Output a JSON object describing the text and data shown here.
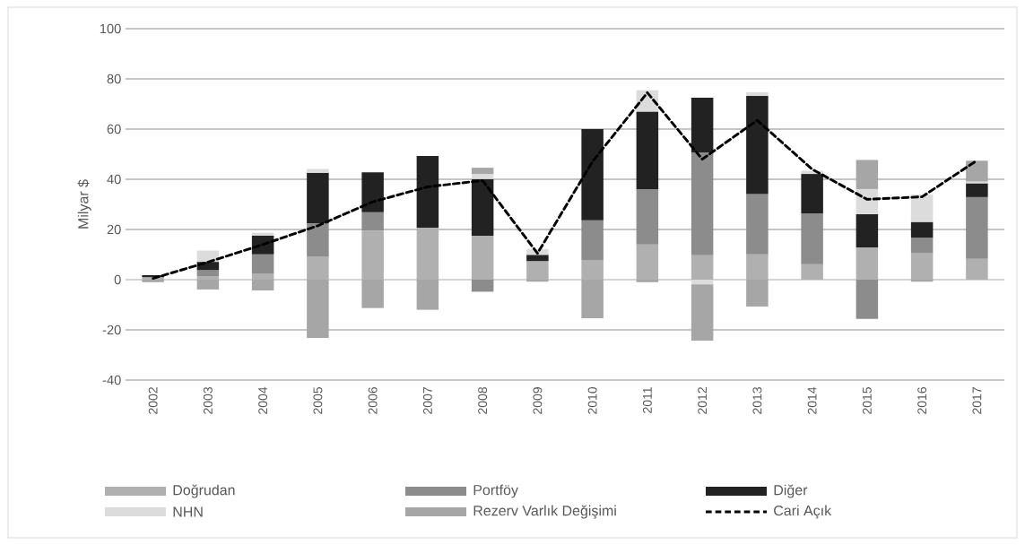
{
  "chart_data": {
    "type": "bar",
    "stacked": true,
    "ylabel": "Milyar $",
    "categories": [
      "2002",
      "2003",
      "2004",
      "2005",
      "2006",
      "2007",
      "2008",
      "2009",
      "2010",
      "2011",
      "2012",
      "2013",
      "2014",
      "2015",
      "2016",
      "2017"
    ],
    "series": [
      {
        "name": "Doğrudan",
        "color": "#b0b0b0",
        "values": [
          1.0,
          1.4,
          2.3,
          9.1,
          19.5,
          20.7,
          17.5,
          7.4,
          7.7,
          14.0,
          9.7,
          10.1,
          6.2,
          12.9,
          10.5,
          8.3
        ]
      },
      {
        "name": "Portföy",
        "color": "#8c8c8c",
        "values": [
          0,
          2.4,
          7.8,
          13.4,
          7.4,
          0,
          -4.8,
          0,
          16.0,
          22.1,
          41.0,
          24.0,
          20.2,
          -15.6,
          6.2,
          24.6
        ]
      },
      {
        "name": "Diğer",
        "color": "#222222",
        "values": [
          0.8,
          3.3,
          7.5,
          20.1,
          15.9,
          28.6,
          22.6,
          2.5,
          36.3,
          30.9,
          21.8,
          39.1,
          15.7,
          13.2,
          6.3,
          5.5
        ]
      },
      {
        "name": "NHN",
        "color": "#dcdcdc",
        "values": [
          0,
          4.5,
          1.1,
          1.5,
          0,
          0,
          2.0,
          2.3,
          0,
          8.5,
          -1.9,
          1.5,
          1.3,
          10.0,
          10.9,
          0.7
        ]
      },
      {
        "name": "Rezerv Varlık Değişimi",
        "color": "#a6a6a6",
        "values": [
          -1.0,
          -3.9,
          -4.3,
          -23.2,
          -11.3,
          -12.0,
          2.5,
          -0.8,
          -15.4,
          -1.0,
          -22.4,
          -10.7,
          0,
          11.6,
          -0.8,
          8.3
        ]
      },
      {
        "name": "Cari Açık",
        "type": "line",
        "color": "#000000",
        "line_style": "dashed",
        "marker": "none",
        "values": [
          0.5,
          7,
          14,
          21.5,
          31,
          37,
          39.5,
          10.5,
          47,
          74.5,
          48,
          63.5,
          44,
          32,
          33,
          47.5
        ]
      }
    ],
    "ylim": [
      -40,
      100
    ],
    "yticks": [
      -40,
      -20,
      0,
      20,
      40,
      60,
      80,
      100
    ],
    "grid": "y",
    "legend": "bottom"
  }
}
